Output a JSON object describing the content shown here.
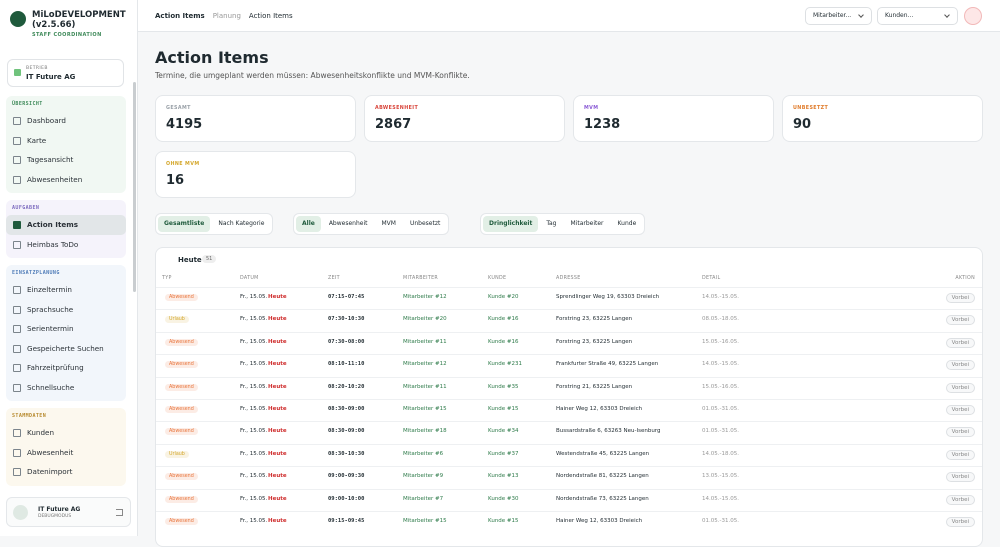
{
  "sidebar": {
    "app_title": "MiLoDEVELOPMENT (v2.5.66)",
    "app_subtitle": "STAFF COORDINATION",
    "org_label": "BETRIEB",
    "org_name": "IT Future AG",
    "sections": [
      {
        "title": "ÜBERSICHT",
        "color": "#f1f8f3",
        "title_color": "#3f8a5a",
        "items": [
          {
            "label": "Dashboard"
          },
          {
            "label": "Karte"
          },
          {
            "label": "Tagesansicht"
          },
          {
            "label": "Abwesenheiten"
          }
        ]
      },
      {
        "title": "AUFGABEN",
        "color": "#f5f3fb",
        "title_color": "#7d6bbf",
        "items": [
          {
            "label": "Action Items",
            "active": true
          },
          {
            "label": "Heimbas ToDo"
          }
        ]
      },
      {
        "title": "EINSATZPLANUNG",
        "color": "#f2f6fb",
        "title_color": "#4f7cb8",
        "items": [
          {
            "label": "Einzeltermin"
          },
          {
            "label": "Sprachsuche"
          },
          {
            "label": "Serientermin"
          },
          {
            "label": "Gespeicherte Suchen"
          },
          {
            "label": "Fahrzeitprüfung"
          },
          {
            "label": "Schnellsuche"
          }
        ]
      },
      {
        "title": "STAMMDATEN",
        "color": "#fcf8ee",
        "title_color": "#b78a2e",
        "items": [
          {
            "label": "Kunden"
          },
          {
            "label": "Abwesenheit"
          },
          {
            "label": "Datenimport"
          }
        ]
      }
    ],
    "user_name": "IT Future AG",
    "user_mode": "DEBUGMODUS"
  },
  "topbar": {
    "breadcrumb": [
      "Action Items",
      "Planung",
      "Action Items"
    ],
    "selects": [
      "Mitarbeiter...",
      "Kunden..."
    ]
  },
  "header": {
    "title": "Action Items",
    "subtitle": "Termine, die umgeplant werden müssen: Abwesenheitskonflikte und MVM-Konflikte."
  },
  "stats": [
    {
      "label": "GESAMT",
      "value": 4195,
      "color": "#9aa1a8"
    },
    {
      "label": "ABWESENHEIT",
      "value": 2867,
      "color": "#d9453b"
    },
    {
      "label": "MVM",
      "value": 1238,
      "color": "#8b5cd6"
    },
    {
      "label": "UNBESETZT",
      "value": 90,
      "color": "#e07b2a"
    },
    {
      "label": "OHNE MVM",
      "value": 16,
      "color": "#d4a72c"
    }
  ],
  "views": [
    {
      "label": "Gesamtliste",
      "active": true
    },
    {
      "label": "Nach Kategorie"
    }
  ],
  "filters": [
    {
      "label": "Alle",
      "active": true
    },
    {
      "label": "Abwesenheit"
    },
    {
      "label": "MVM"
    },
    {
      "label": "Unbesetzt"
    }
  ],
  "sorts": [
    {
      "label": "Dringlichkeit",
      "active": true
    },
    {
      "label": "Tag"
    },
    {
      "label": "Mitarbeiter"
    },
    {
      "label": "Kunde"
    }
  ],
  "table": {
    "group": "Heute",
    "count": 51,
    "columns": [
      "TYP",
      "DATUM",
      "ZEIT",
      "MITARBEITER",
      "KUNDE",
      "ADRESSE",
      "DETAIL",
      "AKTION"
    ],
    "rows": [
      {
        "type": "Abwesend",
        "type_color": "#e8743b",
        "date": "Fr., 15.05.",
        "day": "Heute",
        "time": "07:15-07:45",
        "employee": "Mitarbeiter #12",
        "customer": "Kunde #20",
        "address": "Sprendlinger Weg 19, 63303 Dreieich",
        "detail": "14.05.-15.05.",
        "action": "Vorbei"
      },
      {
        "type": "Urlaub",
        "type_color": "#d4a72c",
        "date": "Fr., 15.05.",
        "day": "Heute",
        "time": "07:30-10:30",
        "employee": "Mitarbeiter #20",
        "customer": "Kunde #16",
        "address": "Forstring 23, 63225 Langen",
        "detail": "08.05.-18.05.",
        "action": "Vorbei"
      },
      {
        "type": "Abwesend",
        "type_color": "#e8743b",
        "date": "Fr., 15.05.",
        "day": "Heute",
        "time": "07:30-08:00",
        "employee": "Mitarbeiter #11",
        "customer": "Kunde #16",
        "address": "Forstring 23, 63225 Langen",
        "detail": "15.05.-16.05.",
        "action": "Vorbei"
      },
      {
        "type": "Abwesend",
        "type_color": "#e8743b",
        "date": "Fr., 15.05.",
        "day": "Heute",
        "time": "08:10-11:10",
        "employee": "Mitarbeiter #12",
        "customer": "Kunde #231",
        "address": "Frankfurter Straße 49, 63225 Langen",
        "detail": "14.05.-15.05.",
        "action": "Vorbei"
      },
      {
        "type": "Abwesend",
        "type_color": "#e8743b",
        "date": "Fr., 15.05.",
        "day": "Heute",
        "time": "08:20-10:20",
        "employee": "Mitarbeiter #11",
        "customer": "Kunde #35",
        "address": "Forstring 21, 63225 Langen",
        "detail": "15.05.-16.05.",
        "action": "Vorbei"
      },
      {
        "type": "Abwesend",
        "type_color": "#e8743b",
        "date": "Fr., 15.05.",
        "day": "Heute",
        "time": "08:30-09:00",
        "employee": "Mitarbeiter #15",
        "customer": "Kunde #15",
        "address": "Hainer Weg 12, 63303 Dreieich",
        "detail": "01.05.-31.05.",
        "action": "Vorbei"
      },
      {
        "type": "Abwesend",
        "type_color": "#e8743b",
        "date": "Fr., 15.05.",
        "day": "Heute",
        "time": "08:30-09:00",
        "employee": "Mitarbeiter #18",
        "customer": "Kunde #34",
        "address": "Bussardstraße 6, 63263 Neu-Isenburg",
        "detail": "01.05.-31.05.",
        "action": "Vorbei"
      },
      {
        "type": "Urlaub",
        "type_color": "#d4a72c",
        "date": "Fr., 15.05.",
        "day": "Heute",
        "time": "08:30-10:30",
        "employee": "Mitarbeiter #6",
        "customer": "Kunde #37",
        "address": "Westendstraße 45, 63225 Langen",
        "detail": "14.05.-18.05.",
        "action": "Vorbei"
      },
      {
        "type": "Abwesend",
        "type_color": "#e8743b",
        "date": "Fr., 15.05.",
        "day": "Heute",
        "time": "09:00-09:30",
        "employee": "Mitarbeiter #9",
        "customer": "Kunde #13",
        "address": "Nordendstraße 81, 63225 Langen",
        "detail": "13.05.-15.05.",
        "action": "Vorbei"
      },
      {
        "type": "Abwesend",
        "type_color": "#e8743b",
        "date": "Fr., 15.05.",
        "day": "Heute",
        "time": "09:00-10:00",
        "employee": "Mitarbeiter #7",
        "customer": "Kunde #30",
        "address": "Nordendstraße 73, 63225 Langen",
        "detail": "14.05.-15.05.",
        "action": "Vorbei"
      },
      {
        "type": "Abwesend",
        "type_color": "#e8743b",
        "date": "Fr., 15.05.",
        "day": "Heute",
        "time": "09:15-09:45",
        "employee": "Mitarbeiter #15",
        "customer": "Kunde #15",
        "address": "Hainer Weg 12, 63303 Dreieich",
        "detail": "01.05.-31.05.",
        "action": "Vorbei"
      }
    ]
  }
}
